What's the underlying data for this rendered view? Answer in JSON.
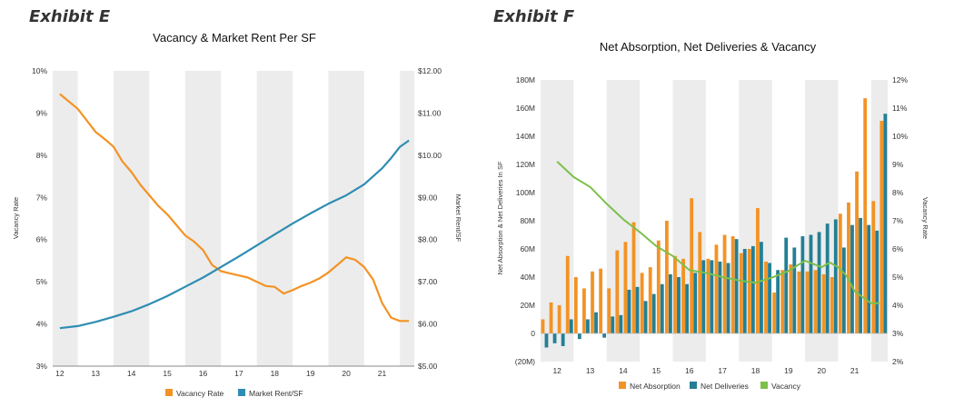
{
  "exhibits": {
    "left": "Exhibit E",
    "right": "Exhibit F"
  },
  "colors": {
    "orange": "#f39325",
    "blue": "#2e8db3",
    "teal": "#247f94",
    "green": "#7dc04b",
    "band": "#ececec"
  },
  "chart_data": [
    {
      "type": "line",
      "title": "Vacancy & Market Rent Per SF",
      "ylabel_left": "Vacancy Rate",
      "ylabel_right": "Market Rent/SF",
      "x_ticks": [
        "12",
        "13",
        "14",
        "15",
        "16",
        "17",
        "18",
        "19",
        "20",
        "21"
      ],
      "x_range": [
        2011.8,
        2021.9
      ],
      "y_left_ticks": [
        "10%",
        "9%",
        "8%",
        "7%",
        "6%",
        "5%",
        "4%",
        "3%"
      ],
      "y_left_range": [
        3,
        10
      ],
      "y_right_ticks": [
        "$12.00",
        "$11.00",
        "$10.00",
        "$9.00",
        "$8.00",
        "$7.00",
        "$6.00",
        "$5.00"
      ],
      "y_right_range": [
        5,
        12
      ],
      "legend": [
        "Vacancy Rate",
        "Market Rent/SF"
      ],
      "series": [
        {
          "name": "Vacancy Rate",
          "axis": "left",
          "x": [
            2012.0,
            2012.5,
            2013.0,
            2013.3,
            2013.5,
            2013.75,
            2014.0,
            2014.25,
            2014.5,
            2014.75,
            2015.0,
            2015.25,
            2015.5,
            2015.75,
            2016.0,
            2016.25,
            2016.5,
            2016.75,
            2017.0,
            2017.25,
            2017.5,
            2017.75,
            2018.0,
            2018.25,
            2018.5,
            2018.75,
            2019.0,
            2019.25,
            2019.5,
            2019.75,
            2020.0,
            2020.25,
            2020.5,
            2020.75,
            2021.0,
            2021.25,
            2021.5,
            2021.75
          ],
          "y": [
            9.45,
            9.1,
            8.55,
            8.35,
            8.2,
            7.85,
            7.6,
            7.3,
            7.05,
            6.8,
            6.6,
            6.35,
            6.1,
            5.95,
            5.75,
            5.4,
            5.25,
            5.2,
            5.15,
            5.1,
            5.0,
            4.9,
            4.88,
            4.72,
            4.8,
            4.9,
            4.98,
            5.08,
            5.22,
            5.4,
            5.58,
            5.52,
            5.35,
            5.05,
            4.5,
            4.15,
            4.07,
            4.07
          ]
        },
        {
          "name": "Market Rent/SF",
          "axis": "right",
          "x": [
            2012.0,
            2012.5,
            2013.0,
            2013.5,
            2014.0,
            2014.5,
            2015.0,
            2015.5,
            2016.0,
            2016.5,
            2017.0,
            2017.5,
            2018.0,
            2018.5,
            2019.0,
            2019.5,
            2020.0,
            2020.5,
            2021.0,
            2021.25,
            2021.5,
            2021.75
          ],
          "y": [
            5.9,
            5.95,
            6.05,
            6.17,
            6.3,
            6.47,
            6.66,
            6.88,
            7.1,
            7.35,
            7.6,
            7.86,
            8.12,
            8.38,
            8.62,
            8.85,
            9.05,
            9.31,
            9.69,
            9.93,
            10.2,
            10.35
          ]
        }
      ]
    },
    {
      "type": "bar",
      "title": "Net Absorption, Net Deliveries & Vacancy",
      "ylabel_left": "Net Absorption & Net Deliveries In SF",
      "ylabel_right": "Vacancy Rate",
      "x_ticks": [
        "12",
        "13",
        "14",
        "15",
        "16",
        "17",
        "18",
        "19",
        "20",
        "21"
      ],
      "y_left_ticks": [
        "180M",
        "160M",
        "140M",
        "120M",
        "100M",
        "80M",
        "60M",
        "40M",
        "20M",
        "0",
        "(20M)"
      ],
      "y_left_range": [
        -20,
        180
      ],
      "y_right_ticks": [
        "12%",
        "11%",
        "10%",
        "9%",
        "8%",
        "7%",
        "6%",
        "5%",
        "4%",
        "3%",
        "2%"
      ],
      "y_right_range": [
        2,
        12
      ],
      "legend": [
        "Net Absorption",
        "Net Deliveries",
        "Vacancy"
      ],
      "quarters_per_year": 4,
      "first_year": 2012,
      "series": [
        {
          "name": "Net Absorption",
          "values": [
            10,
            22,
            20,
            55,
            40,
            32,
            44,
            46,
            32,
            59,
            65,
            79,
            43,
            47,
            66,
            80,
            55,
            53,
            96,
            72,
            53,
            63,
            70,
            69,
            57,
            60,
            89,
            51,
            29,
            45,
            49,
            44,
            44,
            45,
            42,
            40,
            85,
            93,
            115,
            167,
            94,
            151
          ]
        },
        {
          "name": "Net Deliveries",
          "values": [
            -10,
            -7,
            -9,
            10,
            -4,
            10,
            15,
            -3,
            12,
            13,
            31,
            33,
            23,
            28,
            35,
            42,
            40,
            35,
            43,
            52,
            52,
            51,
            50,
            67,
            60,
            62,
            65,
            50,
            45,
            68,
            61,
            69,
            70,
            72,
            78,
            81,
            61,
            77,
            82,
            77,
            73,
            156
          ]
        },
        {
          "name": "Vacancy",
          "x": [
            2012.0,
            2012.5,
            2013.0,
            2013.5,
            2014.0,
            2014.5,
            2015.0,
            2015.5,
            2016.0,
            2016.5,
            2017.0,
            2017.5,
            2018.0,
            2018.5,
            2019.0,
            2019.5,
            2020.0,
            2020.25,
            2020.5,
            2020.75,
            2021.0,
            2021.5,
            2021.75
          ],
          "y": [
            9.1,
            8.55,
            8.2,
            7.6,
            7.05,
            6.6,
            6.1,
            5.75,
            5.25,
            5.15,
            5.0,
            4.88,
            4.8,
            4.98,
            5.22,
            5.58,
            5.35,
            5.52,
            5.35,
            5.05,
            4.5,
            4.07,
            4.07
          ]
        }
      ]
    }
  ]
}
